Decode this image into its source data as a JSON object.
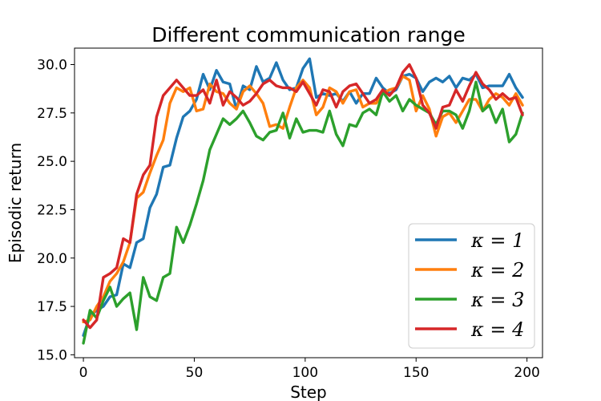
{
  "chart_data": {
    "type": "line",
    "title": "Different communication range",
    "xlabel": "Step",
    "ylabel": "Episodic return",
    "xlim": [
      -4,
      207
    ],
    "ylim": [
      14.85,
      30.85
    ],
    "xticks": [
      0,
      50,
      100,
      150,
      200
    ],
    "yticks": [
      15.0,
      17.5,
      20.0,
      22.5,
      25.0,
      27.5,
      30.0
    ],
    "xtick_labels": [
      "0",
      "50",
      "100",
      "150",
      "200"
    ],
    "ytick_labels": [
      "15.0",
      "17.5",
      "20.0",
      "22.5",
      "25.0",
      "27.5",
      "30.0"
    ],
    "grid": false,
    "legend_position": "lower-right",
    "x": [
      0,
      3,
      6,
      9,
      12,
      15,
      18,
      21,
      24,
      27,
      30,
      33,
      36,
      39,
      42,
      45,
      48,
      51,
      54,
      57,
      60,
      63,
      66,
      69,
      72,
      75,
      78,
      81,
      84,
      87,
      90,
      93,
      96,
      99,
      102,
      105,
      108,
      111,
      114,
      117,
      120,
      123,
      126,
      129,
      132,
      135,
      138,
      141,
      144,
      147,
      150,
      153,
      156,
      159,
      162,
      165,
      168,
      171,
      174,
      177,
      180,
      183,
      186,
      189,
      192,
      195,
      198
    ],
    "series": [
      {
        "name": "κ = 1",
        "color": "#1f77b4",
        "values": [
          16.0,
          17.0,
          17.3,
          17.5,
          18.0,
          18.1,
          19.7,
          19.5,
          20.8,
          21.0,
          22.6,
          23.3,
          24.7,
          24.8,
          26.2,
          27.3,
          27.6,
          28.2,
          29.5,
          28.7,
          29.7,
          29.1,
          29.0,
          27.7,
          28.9,
          28.7,
          29.9,
          29.1,
          29.3,
          30.1,
          29.2,
          28.7,
          28.8,
          29.8,
          30.3,
          28.3,
          28.5,
          28.4,
          28.5,
          28.1,
          28.6,
          28.0,
          28.5,
          28.5,
          29.3,
          28.8,
          28.5,
          28.7,
          29.4,
          29.5,
          29.3,
          28.6,
          29.1,
          29.3,
          29.1,
          29.4,
          28.8,
          29.3,
          29.2,
          29.5,
          28.8,
          28.9,
          28.9,
          28.9,
          29.5,
          28.8,
          28.3
        ]
      },
      {
        "name": "κ = 2",
        "color": "#ff7f0e",
        "values": [
          16.7,
          16.8,
          17.5,
          18.0,
          18.8,
          19.2,
          19.8,
          20.8,
          23.1,
          23.4,
          24.4,
          25.3,
          26.1,
          28.0,
          28.8,
          28.6,
          28.8,
          27.6,
          27.7,
          29.0,
          28.6,
          28.5,
          28.0,
          27.7,
          28.6,
          28.9,
          28.5,
          28.0,
          26.8,
          26.9,
          26.7,
          27.8,
          28.8,
          29.2,
          28.8,
          27.4,
          27.8,
          28.8,
          28.6,
          28.0,
          28.6,
          28.7,
          27.8,
          28.0,
          28.0,
          28.5,
          28.7,
          28.8,
          29.4,
          29.2,
          27.6,
          28.4,
          27.7,
          26.3,
          27.3,
          27.5,
          27.0,
          27.6,
          28.2,
          28.2,
          27.6,
          28.2,
          28.5,
          28.3,
          27.9,
          28.5,
          27.9
        ]
      },
      {
        "name": "κ = 3",
        "color": "#2ca02c",
        "values": [
          15.6,
          17.3,
          16.9,
          17.8,
          18.5,
          17.5,
          17.9,
          18.2,
          16.3,
          19.0,
          18.0,
          17.8,
          19.0,
          19.2,
          21.6,
          20.8,
          21.7,
          22.8,
          24.0,
          25.6,
          26.4,
          27.2,
          26.9,
          27.2,
          27.6,
          27.0,
          26.3,
          26.1,
          26.5,
          26.6,
          27.5,
          26.2,
          27.2,
          26.5,
          26.6,
          26.6,
          26.5,
          27.6,
          26.4,
          25.8,
          26.9,
          26.8,
          27.5,
          27.7,
          27.4,
          28.6,
          28.1,
          28.4,
          27.6,
          28.2,
          27.9,
          27.7,
          27.5,
          26.9,
          27.6,
          27.6,
          27.4,
          26.7,
          27.6,
          29.1,
          27.6,
          27.9,
          27.0,
          27.7,
          26.0,
          26.4,
          27.5
        ]
      },
      {
        "name": "κ = 4",
        "color": "#d62728",
        "values": [
          16.8,
          16.4,
          16.8,
          19.0,
          19.2,
          19.5,
          21.0,
          20.8,
          23.3,
          24.3,
          24.8,
          27.3,
          28.4,
          28.8,
          29.2,
          28.8,
          28.4,
          28.4,
          28.7,
          28.0,
          29.2,
          27.9,
          28.6,
          28.3,
          27.9,
          28.1,
          28.5,
          29.0,
          29.2,
          28.9,
          28.8,
          28.8,
          28.6,
          29.1,
          28.5,
          27.9,
          28.7,
          28.6,
          27.8,
          28.6,
          28.9,
          29.0,
          28.5,
          28.0,
          28.2,
          28.7,
          28.4,
          28.8,
          29.6,
          30.0,
          29.3,
          27.9,
          27.5,
          26.7,
          27.8,
          27.9,
          28.7,
          28.1,
          28.9,
          29.6,
          29.0,
          28.7,
          28.2,
          28.5,
          28.2,
          28.3,
          27.4
        ]
      }
    ]
  }
}
